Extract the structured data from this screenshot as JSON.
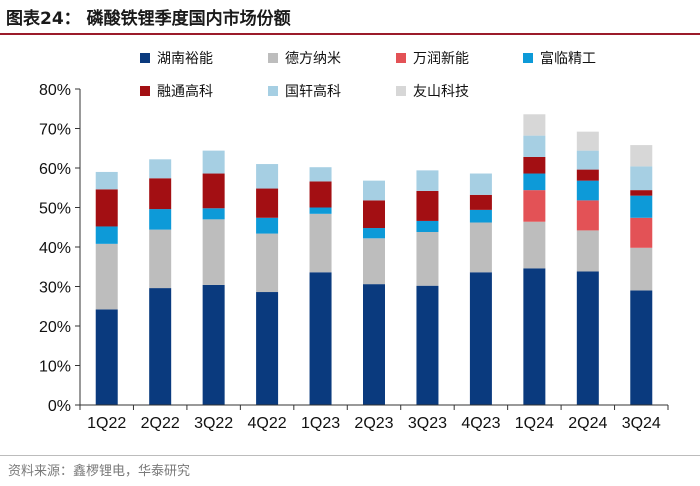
{
  "header": {
    "title": "图表24：  磷酸铁锂季度国内市场份额"
  },
  "footer": {
    "source": "资料来源：鑫椤锂电，华泰研究"
  },
  "chart_data": {
    "type": "bar",
    "stacked": true,
    "categories": [
      "1Q22",
      "2Q22",
      "3Q22",
      "4Q22",
      "1Q23",
      "2Q23",
      "3Q23",
      "4Q23",
      "1Q24",
      "2Q24",
      "3Q24"
    ],
    "y_ticks": [
      "0%",
      "10%",
      "20%",
      "30%",
      "40%",
      "50%",
      "60%",
      "70%",
      "80%"
    ],
    "ylim": [
      0,
      80
    ],
    "legend_position": "top",
    "series": [
      {
        "name": "湖南裕能",
        "color": "#0a3a7e",
        "values": [
          24.2,
          29.6,
          30.4,
          28.6,
          33.6,
          30.6,
          30.2,
          33.6,
          34.6,
          33.8,
          29.0
        ]
      },
      {
        "name": "德方纳米",
        "color": "#bdbdbd",
        "values": [
          16.6,
          14.8,
          16.6,
          14.8,
          14.8,
          11.6,
          13.6,
          12.6,
          11.8,
          10.4,
          10.8
        ]
      },
      {
        "name": "万润新能",
        "color": "#e35256",
        "values": [
          0,
          0,
          0,
          0,
          0,
          0,
          0,
          0,
          8.0,
          7.6,
          7.6
        ]
      },
      {
        "name": "富临精工",
        "color": "#0d9ad8",
        "values": [
          4.4,
          5.2,
          2.8,
          4.0,
          1.6,
          2.6,
          2.8,
          3.2,
          4.2,
          5.0,
          5.6
        ]
      },
      {
        "name": "融通高科",
        "color": "#a30f13",
        "values": [
          9.4,
          7.8,
          8.8,
          7.4,
          6.6,
          7.0,
          7.6,
          3.8,
          4.2,
          2.8,
          1.4
        ]
      },
      {
        "name": "国轩高科",
        "color": "#a6cfe3",
        "values": [
          4.4,
          4.8,
          5.8,
          6.2,
          3.6,
          5.0,
          5.2,
          5.4,
          5.4,
          4.8,
          6.0
        ]
      },
      {
        "name": "友山科技",
        "color": "#d7d7d7",
        "values": [
          0,
          0,
          0,
          0,
          0,
          0,
          0,
          0,
          5.4,
          4.8,
          5.4
        ]
      }
    ]
  }
}
